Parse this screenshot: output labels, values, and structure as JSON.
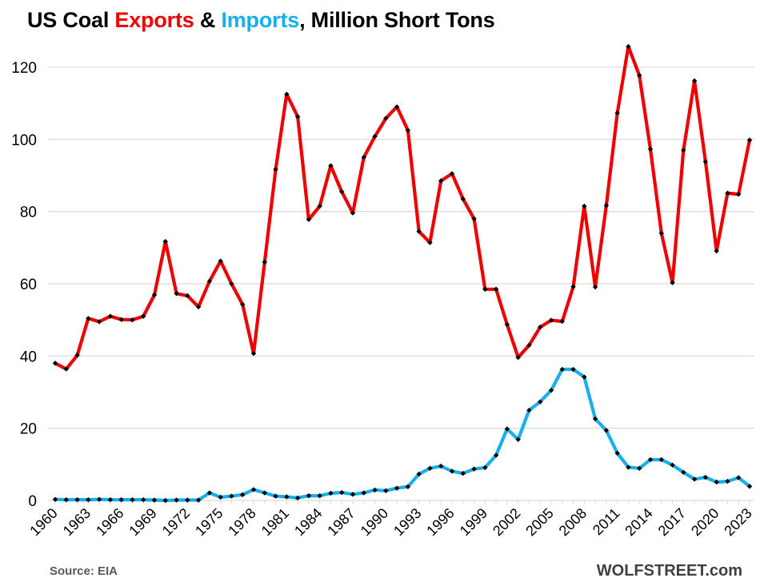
{
  "title": {
    "prefix": "US Coal ",
    "exports_word": "Exports",
    "amp": " & ",
    "imports_word": "Imports",
    "suffix": ", Million Short Tons"
  },
  "footer": {
    "source": "Source: EIA",
    "brand": "WOLFSTREET.com"
  },
  "colors": {
    "exports": "#ee0000",
    "imports": "#17b0ea",
    "marker": "#000000",
    "grid": "#d9d9d9",
    "tick": "#000000"
  },
  "chart_data": {
    "type": "line",
    "title": "US Coal Exports & Imports, Million Short Tons",
    "xlabel": "",
    "ylabel": "",
    "ylim": [
      0,
      130
    ],
    "yticks": [
      0,
      20,
      40,
      60,
      80,
      100,
      120
    ],
    "grid": true,
    "legend": "none (series named in title colors)",
    "x": [
      1960,
      1961,
      1962,
      1963,
      1964,
      1965,
      1966,
      1967,
      1968,
      1969,
      1970,
      1971,
      1972,
      1973,
      1974,
      1975,
      1976,
      1977,
      1978,
      1979,
      1980,
      1981,
      1982,
      1983,
      1984,
      1985,
      1986,
      1987,
      1988,
      1989,
      1990,
      1991,
      1992,
      1993,
      1994,
      1995,
      1996,
      1997,
      1998,
      1999,
      2000,
      2001,
      2002,
      2003,
      2004,
      2005,
      2006,
      2007,
      2008,
      2009,
      2010,
      2011,
      2012,
      2013,
      2014,
      2015,
      2016,
      2017,
      2018,
      2019,
      2020,
      2021,
      2022,
      2023
    ],
    "xtick_labels": [
      "1960",
      "1963",
      "1966",
      "1969",
      "1972",
      "1975",
      "1978",
      "1981",
      "1984",
      "1987",
      "1990",
      "1993",
      "1996",
      "1999",
      "2002",
      "2005",
      "2008",
      "2011",
      "2014",
      "2017",
      "2020",
      "2023"
    ],
    "series": [
      {
        "name": "Exports",
        "values": [
          38.0,
          36.4,
          40.2,
          50.4,
          49.5,
          51.0,
          50.1,
          50.0,
          51.0,
          56.9,
          71.7,
          57.3,
          56.7,
          53.6,
          60.7,
          66.3,
          60.0,
          54.3,
          40.7,
          66.0,
          91.7,
          112.5,
          106.3,
          77.8,
          81.5,
          92.7,
          85.5,
          79.6,
          95.0,
          100.8,
          105.8,
          109.0,
          102.5,
          74.5,
          71.4,
          88.5,
          90.5,
          83.5,
          78.0,
          58.5,
          58.5,
          48.7,
          39.6,
          43.0,
          48.0,
          49.9,
          49.6,
          59.2,
          81.5,
          59.1,
          81.7,
          107.3,
          125.7,
          117.7,
          97.3,
          74.0,
          60.3,
          97.0,
          116.2,
          93.8,
          69.1,
          85.1,
          84.8,
          99.8
        ]
      },
      {
        "name": "Imports",
        "values": [
          0.3,
          0.2,
          0.2,
          0.2,
          0.3,
          0.2,
          0.2,
          0.2,
          0.2,
          0.1,
          0.0,
          0.1,
          0.1,
          0.1,
          2.1,
          0.9,
          1.2,
          1.6,
          3.0,
          2.1,
          1.2,
          1.0,
          0.7,
          1.3,
          1.3,
          2.0,
          2.2,
          1.7,
          2.1,
          2.9,
          2.7,
          3.4,
          3.8,
          7.3,
          8.9,
          9.5,
          8.1,
          7.5,
          8.7,
          9.1,
          12.5,
          19.8,
          16.9,
          25.0,
          27.3,
          30.5,
          36.3,
          36.3,
          34.2,
          22.6,
          19.4,
          13.1,
          9.2,
          8.9,
          11.3,
          11.3,
          9.8,
          7.8,
          5.9,
          6.4,
          5.1,
          5.3,
          6.3,
          3.9
        ]
      }
    ]
  }
}
